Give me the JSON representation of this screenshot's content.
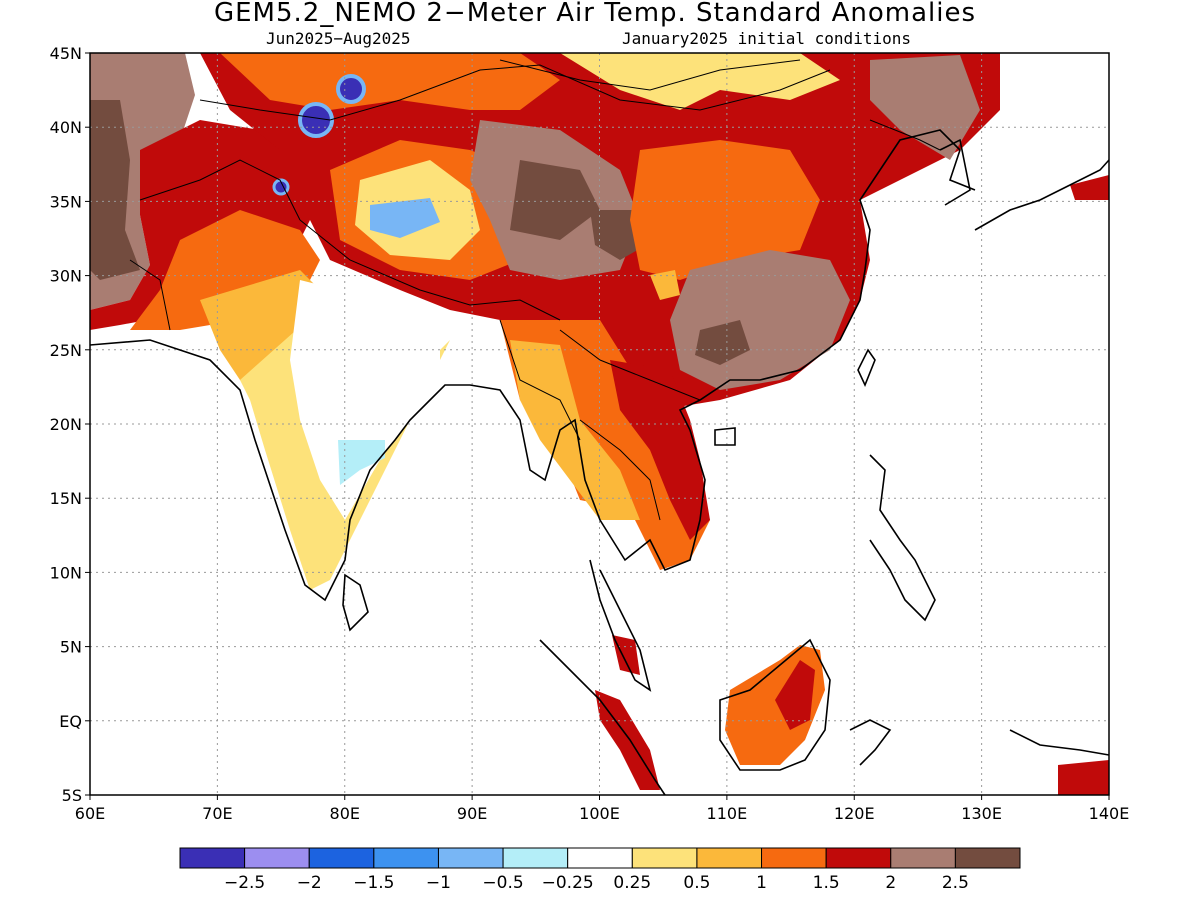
{
  "title": "GEM5.2_NEMO 2−Meter Air Temp. Standard Anomalies",
  "subtitle_period": "Jun2025−Aug2025",
  "subtitle_init": "January2025 initial conditions",
  "lat_labels": [
    "45N",
    "40N",
    "35N",
    "30N",
    "25N",
    "20N",
    "15N",
    "10N",
    "5N",
    "EQ",
    "5S"
  ],
  "lon_labels": [
    "60E",
    "70E",
    "80E",
    "90E",
    "100E",
    "110E",
    "120E",
    "130E",
    "140E"
  ],
  "colorbar": {
    "colors": [
      "#3a2fb5",
      "#9c8ef0",
      "#1c63e0",
      "#3d92f0",
      "#78b6f5",
      "#b4eef8",
      "#ffffff",
      "#fde27a",
      "#fbb83a",
      "#f66a10",
      "#c00a0a",
      "#a97d72",
      "#734c3f"
    ],
    "labels": [
      "−2.5",
      "−2",
      "−1.5",
      "−1",
      "−0.5",
      "−0.25",
      "0.25",
      "0.5",
      "1",
      "1.5",
      "2",
      "2.5"
    ]
  }
}
